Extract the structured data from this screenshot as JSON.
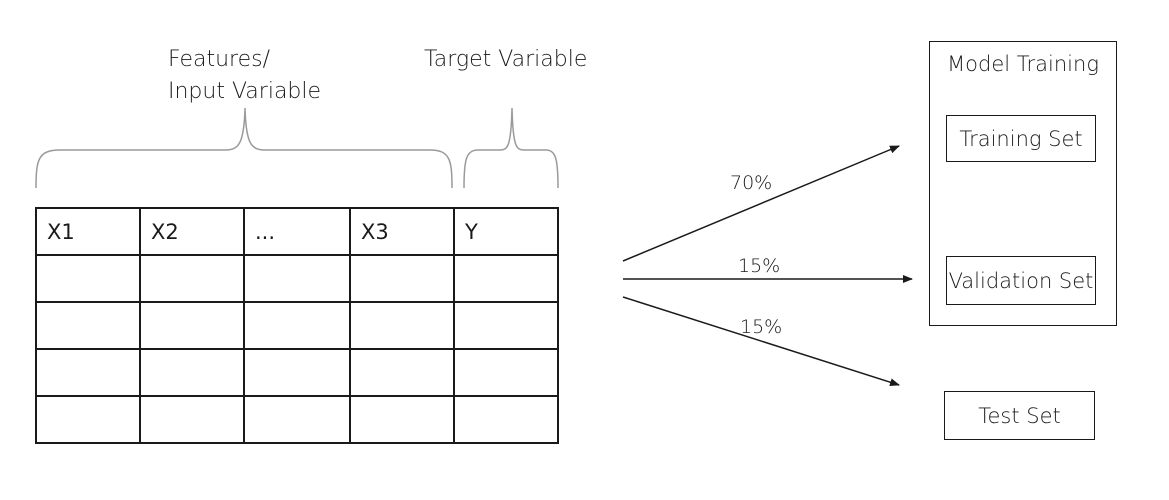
{
  "labels": {
    "features_line1": "Features/",
    "features_line2": "Input Variable",
    "target": "Target Variable"
  },
  "table": {
    "headers": [
      "X1",
      "X2",
      "...",
      "X3",
      "Y"
    ],
    "empty_rows": 4
  },
  "splits": [
    {
      "percent": "70%",
      "target": "Training Set"
    },
    {
      "percent": "15%",
      "target": "Validation Set"
    },
    {
      "percent": "15%",
      "target": "Test Set"
    }
  ],
  "model_training": {
    "title": "Model Training",
    "training_set": "Training Set",
    "validation_set": "Validation Set"
  },
  "test_set": "Test Set",
  "colors": {
    "ink": "#1a1a1a",
    "brace": "#9a9a9a"
  }
}
